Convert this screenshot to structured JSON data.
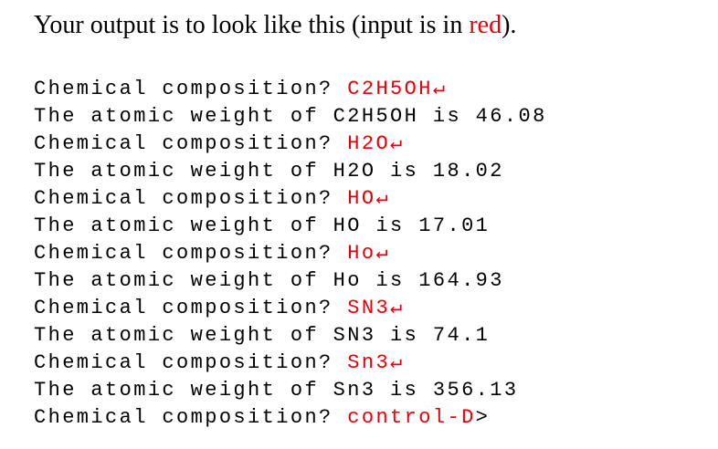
{
  "intro": {
    "before": "Your output is to look like this (input is in ",
    "highlight": "red",
    "after": ")."
  },
  "lines": [
    {
      "prompt": "Chemical composition? ",
      "input": "C2H5OH↵"
    },
    {
      "text": "The atomic weight of C2H5OH is 46.08"
    },
    {
      "prompt": "Chemical composition? ",
      "input": "H2O↵"
    },
    {
      "text": "The atomic weight of H2O is 18.02"
    },
    {
      "prompt": "Chemical composition? ",
      "input": "HO↵"
    },
    {
      "text": "The atomic weight of HO is 17.01"
    },
    {
      "prompt": "Chemical composition? ",
      "input": "Ho↵"
    },
    {
      "text": "The atomic weight of Ho is 164.93"
    },
    {
      "prompt": "Chemical composition? ",
      "input": "SN3↵"
    },
    {
      "text": "The atomic weight of SN3 is 74.1"
    },
    {
      "prompt": "Chemical composition? ",
      "input": "Sn3↵"
    },
    {
      "text": "The atomic weight of Sn3 is 356.13"
    },
    {
      "prompt": "Chemical composition? ",
      "input": "control-D",
      "suffix": ">"
    }
  ]
}
